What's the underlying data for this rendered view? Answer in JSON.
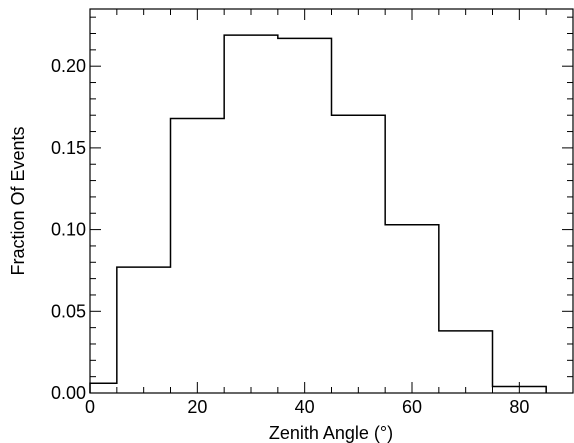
{
  "chart_data": {
    "type": "bar",
    "title": "",
    "xlabel": "Zenith Angle (°)",
    "ylabel": "Fraction Of Events",
    "xlim": [
      0,
      90
    ],
    "ylim": [
      0,
      0.235
    ],
    "x_ticks": [
      0,
      20,
      40,
      60,
      80
    ],
    "y_ticks": [
      0.0,
      0.05,
      0.1,
      0.15,
      0.2
    ],
    "x_tick_labels": [
      "0",
      "20",
      "40",
      "60",
      "80"
    ],
    "y_tick_labels": [
      "0.00",
      "0.05",
      "0.10",
      "0.15",
      "0.20"
    ],
    "grid": false,
    "style": "step-histogram",
    "bins": [
      {
        "start": 0,
        "end": 5,
        "value": 0.006
      },
      {
        "start": 5,
        "end": 15,
        "value": 0.077
      },
      {
        "start": 15,
        "end": 25,
        "value": 0.168
      },
      {
        "start": 25,
        "end": 35,
        "value": 0.219
      },
      {
        "start": 35,
        "end": 45,
        "value": 0.217
      },
      {
        "start": 45,
        "end": 55,
        "value": 0.17
      },
      {
        "start": 55,
        "end": 65,
        "value": 0.103
      },
      {
        "start": 65,
        "end": 75,
        "value": 0.038
      },
      {
        "start": 75,
        "end": 85,
        "value": 0.004
      }
    ]
  }
}
